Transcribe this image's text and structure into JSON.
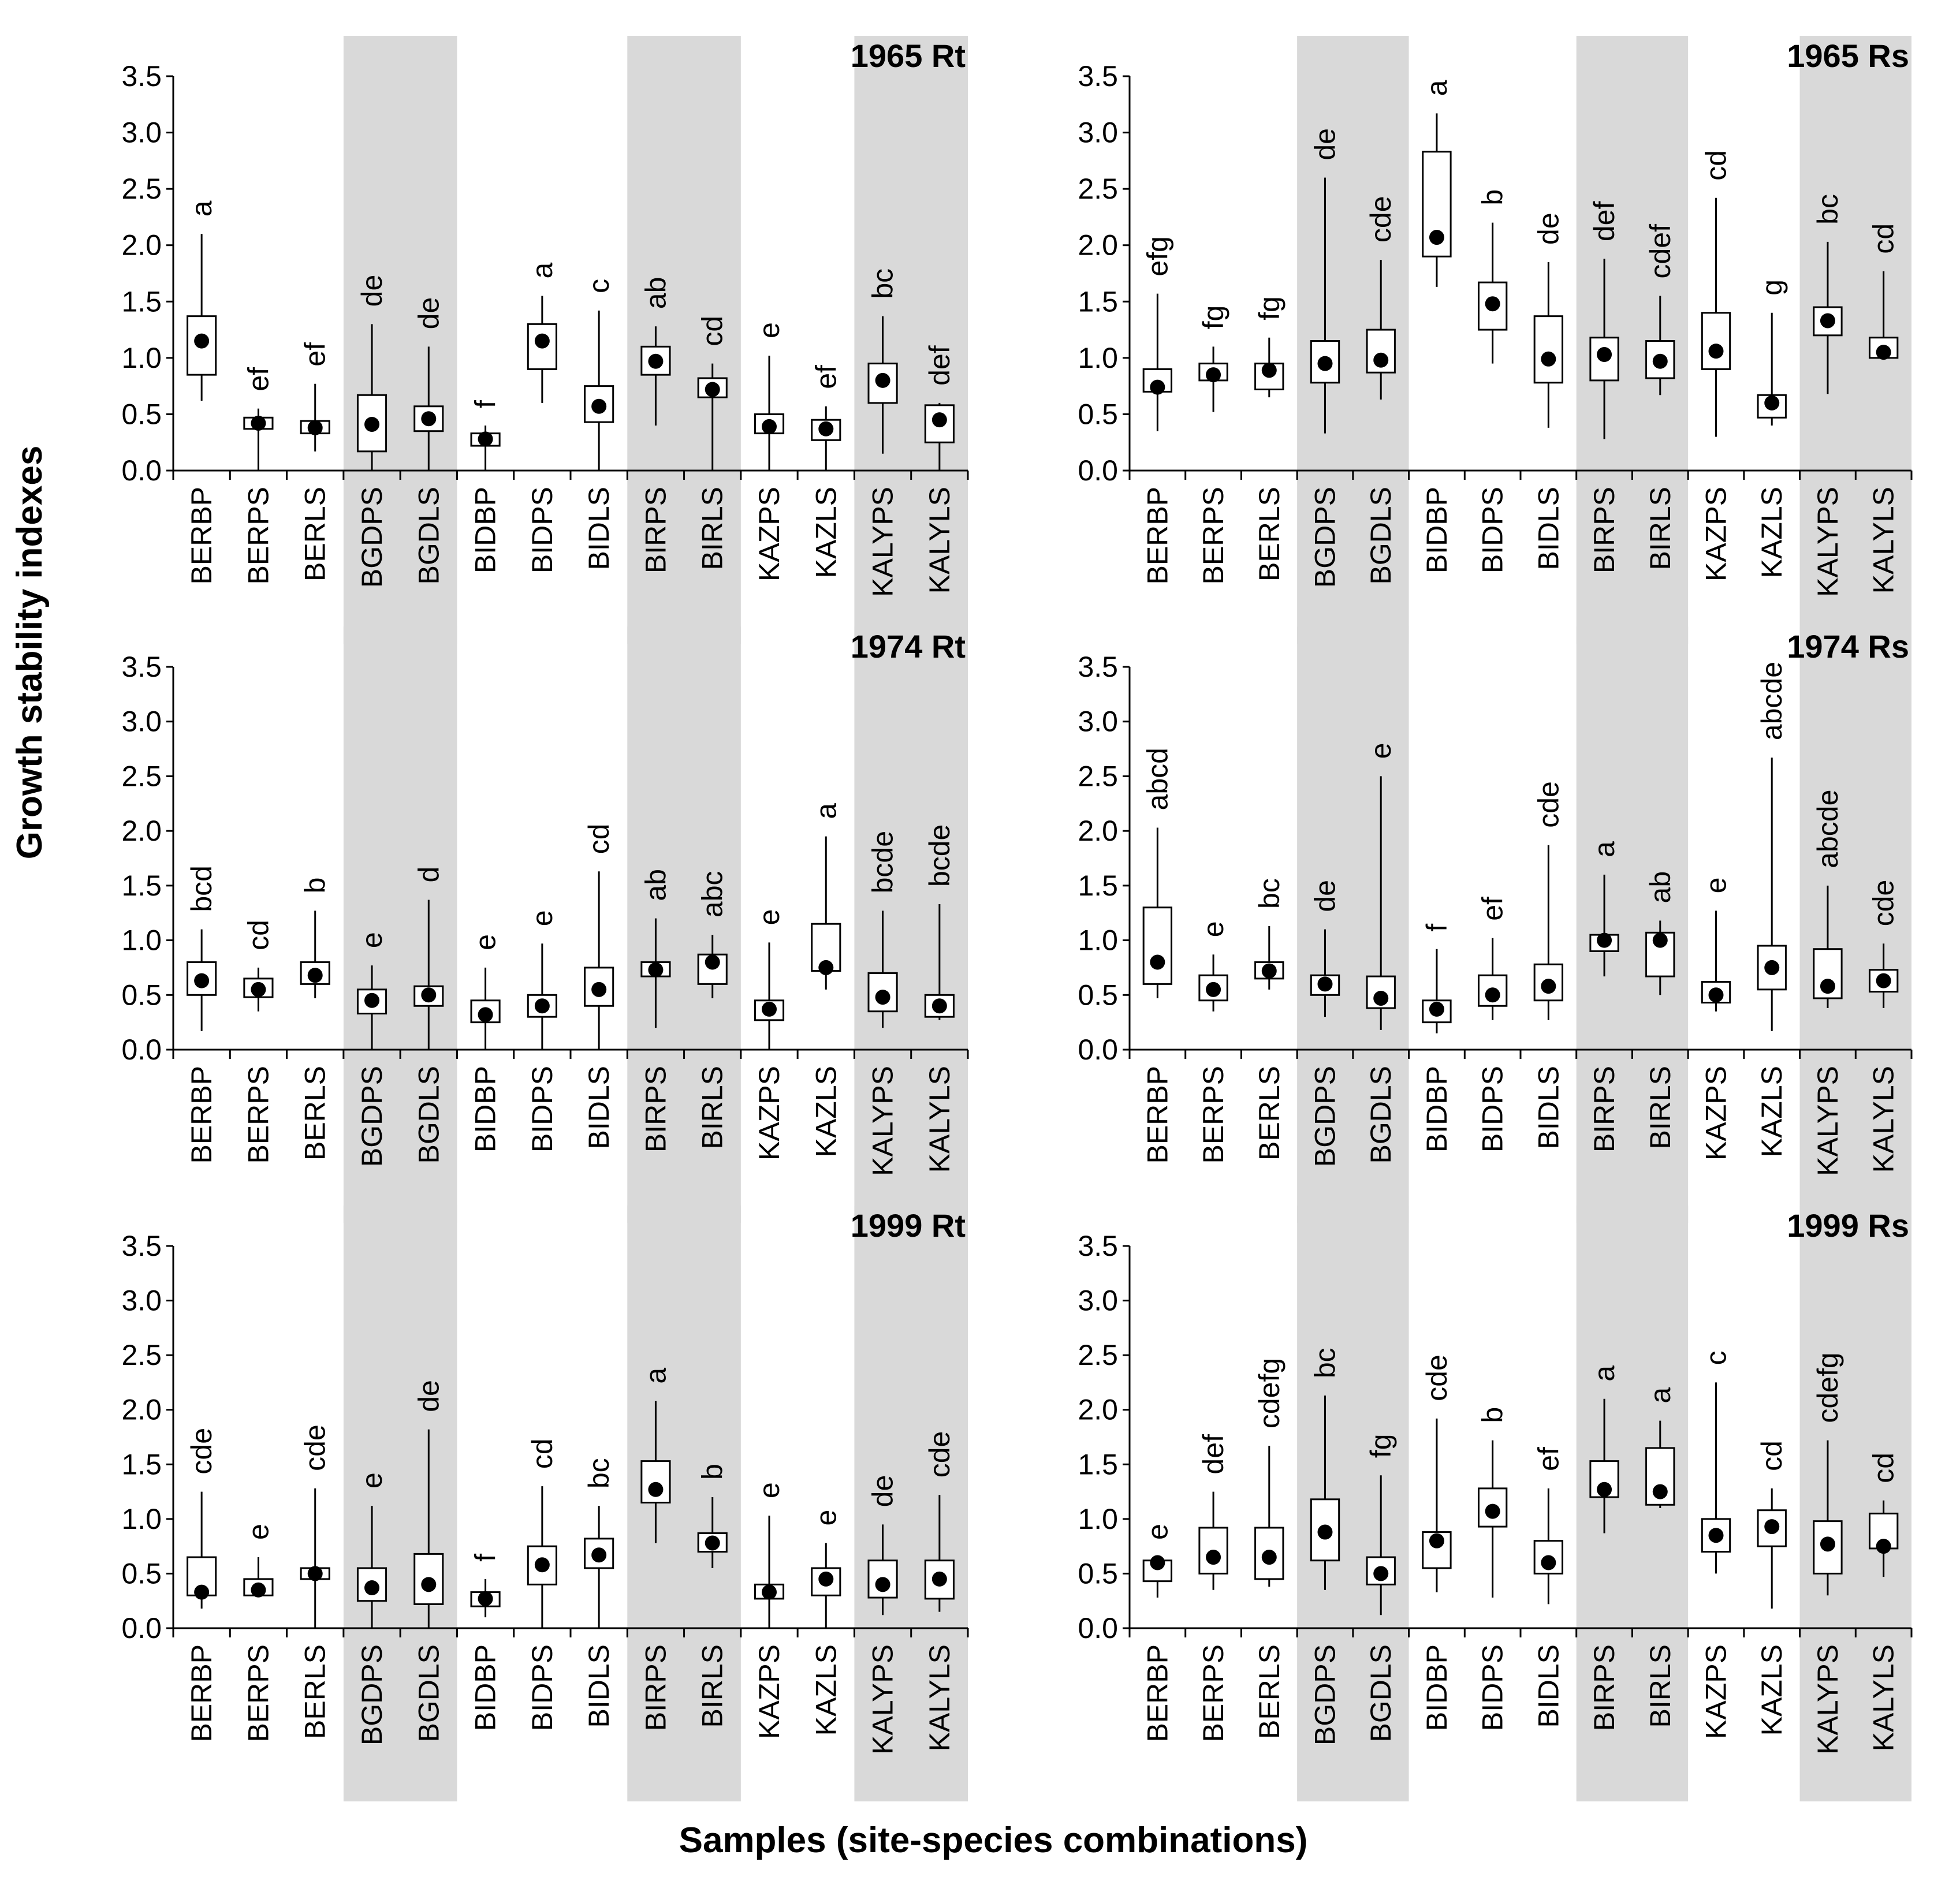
{
  "chart_data": {
    "type": "boxplot",
    "y_axis_title": "Growth stability indexes",
    "x_axis_title": "Samples (site-species combinations)",
    "ylim": [
      0,
      3.5
    ],
    "y_ticks": [
      "0.0",
      "0.5",
      "1.0",
      "1.5",
      "2.0",
      "2.5",
      "3.0",
      "3.5"
    ],
    "categories": [
      "BERBP",
      "BERPS",
      "BERLS",
      "BGDPS",
      "BGDLS",
      "BIDBP",
      "BIDPS",
      "BIDLS",
      "BIRPS",
      "BIRLS",
      "KAZPS",
      "KAZLS",
      "KALYPS",
      "KALYLS"
    ],
    "shaded_groups": [
      "BGDPS",
      "BGDLS",
      "BIRPS",
      "BIRLS",
      "KALYPS",
      "KALYLS"
    ],
    "colors": {
      "shade": "#d9d9d9",
      "box": "#ffffff",
      "ink": "#000000"
    },
    "panels": [
      {
        "title": "1965 Rt",
        "series": [
          {
            "min": 0.62,
            "q1": 0.85,
            "median": 1.15,
            "q3": 1.37,
            "max": 2.1,
            "letters": "a"
          },
          {
            "min": 0.0,
            "q1": 0.37,
            "median": 0.42,
            "q3": 0.47,
            "max": 0.55,
            "letters": "ef"
          },
          {
            "min": 0.17,
            "q1": 0.33,
            "median": 0.38,
            "q3": 0.44,
            "max": 0.77,
            "letters": "ef"
          },
          {
            "min": 0.0,
            "q1": 0.17,
            "median": 0.41,
            "q3": 0.67,
            "max": 1.3,
            "letters": "de"
          },
          {
            "min": 0.0,
            "q1": 0.35,
            "median": 0.46,
            "q3": 0.57,
            "max": 1.1,
            "letters": "de"
          },
          {
            "min": 0.0,
            "q1": 0.22,
            "median": 0.28,
            "q3": 0.33,
            "max": 0.4,
            "letters": "f"
          },
          {
            "min": 0.6,
            "q1": 0.9,
            "median": 1.15,
            "q3": 1.3,
            "max": 1.55,
            "letters": "a"
          },
          {
            "min": 0.0,
            "q1": 0.43,
            "median": 0.57,
            "q3": 0.75,
            "max": 1.42,
            "letters": "c"
          },
          {
            "min": 0.4,
            "q1": 0.85,
            "median": 0.97,
            "q3": 1.1,
            "max": 1.28,
            "letters": "ab"
          },
          {
            "min": 0.0,
            "q1": 0.65,
            "median": 0.72,
            "q3": 0.82,
            "max": 0.95,
            "letters": "cd"
          },
          {
            "min": 0.0,
            "q1": 0.33,
            "median": 0.39,
            "q3": 0.5,
            "max": 1.02,
            "letters": "e"
          },
          {
            "min": 0.0,
            "q1": 0.27,
            "median": 0.37,
            "q3": 0.45,
            "max": 0.57,
            "letters": "ef"
          },
          {
            "min": 0.15,
            "q1": 0.6,
            "median": 0.8,
            "q3": 0.95,
            "max": 1.37,
            "letters": "bc"
          },
          {
            "min": 0.0,
            "q1": 0.25,
            "median": 0.45,
            "q3": 0.58,
            "max": 0.6,
            "letters": "def"
          }
        ]
      },
      {
        "title": "1965 Rs",
        "series": [
          {
            "min": 0.35,
            "q1": 0.7,
            "median": 0.74,
            "q3": 0.9,
            "max": 1.57,
            "letters": "efg"
          },
          {
            "min": 0.52,
            "q1": 0.8,
            "median": 0.85,
            "q3": 0.95,
            "max": 1.1,
            "letters": "fg"
          },
          {
            "min": 0.65,
            "q1": 0.72,
            "median": 0.89,
            "q3": 0.95,
            "max": 1.18,
            "letters": "fg"
          },
          {
            "min": 0.33,
            "q1": 0.78,
            "median": 0.95,
            "q3": 1.15,
            "max": 2.6,
            "letters": "de"
          },
          {
            "min": 0.63,
            "q1": 0.87,
            "median": 0.98,
            "q3": 1.25,
            "max": 1.87,
            "letters": "cde"
          },
          {
            "min": 1.63,
            "q1": 1.9,
            "median": 2.07,
            "q3": 2.83,
            "max": 3.17,
            "letters": "a"
          },
          {
            "min": 0.95,
            "q1": 1.25,
            "median": 1.48,
            "q3": 1.67,
            "max": 2.2,
            "letters": "b"
          },
          {
            "min": 0.38,
            "q1": 0.78,
            "median": 0.99,
            "q3": 1.37,
            "max": 1.85,
            "letters": "de"
          },
          {
            "min": 0.28,
            "q1": 0.8,
            "median": 1.03,
            "q3": 1.18,
            "max": 1.88,
            "letters": "def"
          },
          {
            "min": 0.67,
            "q1": 0.82,
            "median": 0.97,
            "q3": 1.15,
            "max": 1.55,
            "letters": "cdef"
          },
          {
            "min": 0.3,
            "q1": 0.9,
            "median": 1.06,
            "q3": 1.4,
            "max": 2.42,
            "letters": "cd"
          },
          {
            "min": 0.4,
            "q1": 0.47,
            "median": 0.6,
            "q3": 0.67,
            "max": 1.4,
            "letters": "g"
          },
          {
            "min": 0.68,
            "q1": 1.2,
            "median": 1.33,
            "q3": 1.45,
            "max": 2.03,
            "letters": "bc"
          },
          {
            "min": 1.0,
            "q1": 1.0,
            "median": 1.05,
            "q3": 1.18,
            "max": 1.77,
            "letters": "cd"
          }
        ]
      },
      {
        "title": "1974 Rt",
        "series": [
          {
            "min": 0.17,
            "q1": 0.5,
            "median": 0.63,
            "q3": 0.8,
            "max": 1.1,
            "letters": "bcd"
          },
          {
            "min": 0.35,
            "q1": 0.48,
            "median": 0.55,
            "q3": 0.65,
            "max": 0.75,
            "letters": "cd"
          },
          {
            "min": 0.47,
            "q1": 0.6,
            "median": 0.68,
            "q3": 0.8,
            "max": 1.27,
            "letters": "b"
          },
          {
            "min": 0.0,
            "q1": 0.33,
            "median": 0.45,
            "q3": 0.55,
            "max": 0.77,
            "letters": "e"
          },
          {
            "min": 0.0,
            "q1": 0.4,
            "median": 0.5,
            "q3": 0.58,
            "max": 1.37,
            "letters": "d"
          },
          {
            "min": 0.0,
            "q1": 0.25,
            "median": 0.32,
            "q3": 0.45,
            "max": 0.75,
            "letters": "e"
          },
          {
            "min": 0.0,
            "q1": 0.3,
            "median": 0.4,
            "q3": 0.5,
            "max": 0.97,
            "letters": "e"
          },
          {
            "min": 0.0,
            "q1": 0.4,
            "median": 0.55,
            "q3": 0.75,
            "max": 1.63,
            "letters": "cd"
          },
          {
            "min": 0.2,
            "q1": 0.67,
            "median": 0.73,
            "q3": 0.8,
            "max": 1.2,
            "letters": "ab"
          },
          {
            "min": 0.47,
            "q1": 0.6,
            "median": 0.8,
            "q3": 0.87,
            "max": 1.05,
            "letters": "abc"
          },
          {
            "min": 0.0,
            "q1": 0.27,
            "median": 0.37,
            "q3": 0.45,
            "max": 0.98,
            "letters": "e"
          },
          {
            "min": 0.55,
            "q1": 0.72,
            "median": 0.75,
            "q3": 1.15,
            "max": 1.95,
            "letters": "a"
          },
          {
            "min": 0.2,
            "q1": 0.35,
            "median": 0.48,
            "q3": 0.7,
            "max": 1.27,
            "letters": "bcde"
          },
          {
            "min": 0.27,
            "q1": 0.3,
            "median": 0.4,
            "q3": 0.5,
            "max": 1.33,
            "letters": "bcde"
          }
        ]
      },
      {
        "title": "1974 Rs",
        "series": [
          {
            "min": 0.47,
            "q1": 0.6,
            "median": 0.8,
            "q3": 1.3,
            "max": 2.03,
            "letters": "abcd"
          },
          {
            "min": 0.35,
            "q1": 0.45,
            "median": 0.55,
            "q3": 0.68,
            "max": 0.87,
            "letters": "e"
          },
          {
            "min": 0.55,
            "q1": 0.65,
            "median": 0.72,
            "q3": 0.8,
            "max": 1.13,
            "letters": "bc"
          },
          {
            "min": 0.3,
            "q1": 0.5,
            "median": 0.6,
            "q3": 0.68,
            "max": 1.1,
            "letters": "de"
          },
          {
            "min": 0.18,
            "q1": 0.38,
            "median": 0.47,
            "q3": 0.67,
            "max": 2.5,
            "letters": "e"
          },
          {
            "min": 0.15,
            "q1": 0.25,
            "median": 0.37,
            "q3": 0.45,
            "max": 0.92,
            "letters": "f"
          },
          {
            "min": 0.27,
            "q1": 0.4,
            "median": 0.5,
            "q3": 0.68,
            "max": 1.02,
            "letters": "ef"
          },
          {
            "min": 0.27,
            "q1": 0.45,
            "median": 0.58,
            "q3": 0.78,
            "max": 1.87,
            "letters": "cde"
          },
          {
            "min": 0.67,
            "q1": 0.9,
            "median": 1.0,
            "q3": 1.05,
            "max": 1.6,
            "letters": "a"
          },
          {
            "min": 0.5,
            "q1": 0.67,
            "median": 1.0,
            "q3": 1.07,
            "max": 1.18,
            "letters": "ab"
          },
          {
            "min": 0.35,
            "q1": 0.43,
            "median": 0.5,
            "q3": 0.62,
            "max": 1.27,
            "letters": "e"
          },
          {
            "min": 0.17,
            "q1": 0.55,
            "median": 0.75,
            "q3": 0.95,
            "max": 2.67,
            "letters": "abcde"
          },
          {
            "min": 0.38,
            "q1": 0.47,
            "median": 0.58,
            "q3": 0.92,
            "max": 1.5,
            "letters": "abcde"
          },
          {
            "min": 0.38,
            "q1": 0.53,
            "median": 0.63,
            "q3": 0.73,
            "max": 0.97,
            "letters": "cde"
          }
        ]
      },
      {
        "title": "1999 Rt",
        "series": [
          {
            "min": 0.18,
            "q1": 0.3,
            "median": 0.33,
            "q3": 0.65,
            "max": 1.25,
            "letters": "cde"
          },
          {
            "min": 0.3,
            "q1": 0.3,
            "median": 0.35,
            "q3": 0.45,
            "max": 0.65,
            "letters": "e"
          },
          {
            "min": 0.0,
            "q1": 0.45,
            "median": 0.5,
            "q3": 0.55,
            "max": 1.28,
            "letters": "cde"
          },
          {
            "min": 0.0,
            "q1": 0.25,
            "median": 0.37,
            "q3": 0.55,
            "max": 1.12,
            "letters": "e"
          },
          {
            "min": 0.0,
            "q1": 0.22,
            "median": 0.4,
            "q3": 0.68,
            "max": 1.82,
            "letters": "de"
          },
          {
            "min": 0.1,
            "q1": 0.2,
            "median": 0.27,
            "q3": 0.33,
            "max": 0.45,
            "letters": "f"
          },
          {
            "min": 0.0,
            "q1": 0.4,
            "median": 0.58,
            "q3": 0.75,
            "max": 1.3,
            "letters": "cd"
          },
          {
            "min": 0.0,
            "q1": 0.55,
            "median": 0.67,
            "q3": 0.82,
            "max": 1.12,
            "letters": "bc"
          },
          {
            "min": 0.78,
            "q1": 1.15,
            "median": 1.27,
            "q3": 1.53,
            "max": 2.08,
            "letters": "a"
          },
          {
            "min": 0.55,
            "q1": 0.7,
            "median": 0.78,
            "q3": 0.87,
            "max": 1.2,
            "letters": "b"
          },
          {
            "min": 0.0,
            "q1": 0.27,
            "median": 0.33,
            "q3": 0.4,
            "max": 1.03,
            "letters": "e"
          },
          {
            "min": 0.0,
            "q1": 0.3,
            "median": 0.45,
            "q3": 0.55,
            "max": 0.78,
            "letters": "e"
          },
          {
            "min": 0.12,
            "q1": 0.28,
            "median": 0.4,
            "q3": 0.62,
            "max": 0.95,
            "letters": "de"
          },
          {
            "min": 0.15,
            "q1": 0.27,
            "median": 0.45,
            "q3": 0.62,
            "max": 1.22,
            "letters": "cde"
          }
        ]
      },
      {
        "title": "1999 Rs",
        "series": [
          {
            "min": 0.28,
            "q1": 0.43,
            "median": 0.6,
            "q3": 0.62,
            "max": 0.65,
            "letters": "e"
          },
          {
            "min": 0.35,
            "q1": 0.5,
            "median": 0.65,
            "q3": 0.92,
            "max": 1.25,
            "letters": "def"
          },
          {
            "min": 0.38,
            "q1": 0.45,
            "median": 0.65,
            "q3": 0.92,
            "max": 1.67,
            "letters": "cdefg"
          },
          {
            "min": 0.35,
            "q1": 0.62,
            "median": 0.88,
            "q3": 1.18,
            "max": 2.13,
            "letters": "bc"
          },
          {
            "min": 0.12,
            "q1": 0.4,
            "median": 0.5,
            "q3": 0.65,
            "max": 1.4,
            "letters": "fg"
          },
          {
            "min": 0.33,
            "q1": 0.55,
            "median": 0.8,
            "q3": 0.88,
            "max": 1.92,
            "letters": "cde"
          },
          {
            "min": 0.28,
            "q1": 0.93,
            "median": 1.07,
            "q3": 1.28,
            "max": 1.72,
            "letters": "b"
          },
          {
            "min": 0.22,
            "q1": 0.5,
            "median": 0.6,
            "q3": 0.8,
            "max": 1.28,
            "letters": "ef"
          },
          {
            "min": 0.87,
            "q1": 1.2,
            "median": 1.27,
            "q3": 1.53,
            "max": 2.1,
            "letters": "a"
          },
          {
            "min": 1.1,
            "q1": 1.13,
            "median": 1.25,
            "q3": 1.65,
            "max": 1.9,
            "letters": "a"
          },
          {
            "min": 0.5,
            "q1": 0.7,
            "median": 0.85,
            "q3": 1.0,
            "max": 2.25,
            "letters": "c"
          },
          {
            "min": 0.18,
            "q1": 0.75,
            "median": 0.93,
            "q3": 1.08,
            "max": 1.28,
            "letters": "cd"
          },
          {
            "min": 0.3,
            "q1": 0.5,
            "median": 0.77,
            "q3": 0.98,
            "max": 1.72,
            "letters": "cdefg"
          },
          {
            "min": 0.47,
            "q1": 0.73,
            "median": 0.75,
            "q3": 1.05,
            "max": 1.17,
            "letters": "cd"
          }
        ]
      }
    ]
  }
}
